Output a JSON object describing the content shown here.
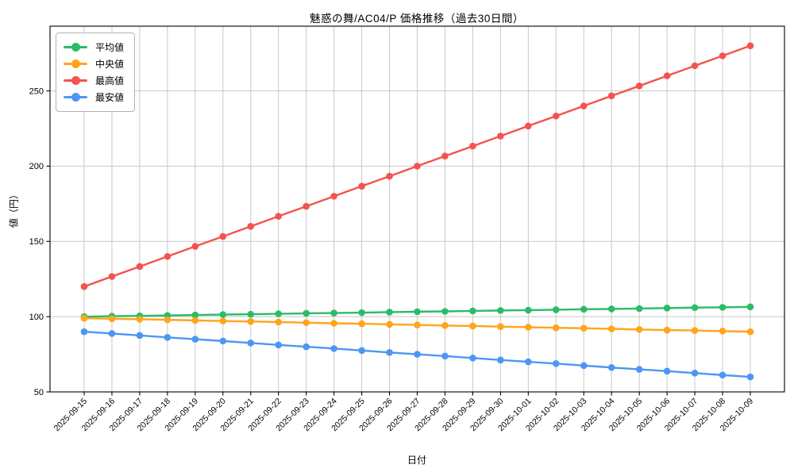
{
  "page": {
    "background": "#ffffff"
  },
  "chart_data": {
    "type": "line",
    "title": "魅惑の舞/AC04/P 価格推移（過去30日間）",
    "xlabel": "日付",
    "ylabel": "値（円）",
    "legend_position": "upper-left",
    "grid": true,
    "grid_color": "#c8c8c8",
    "axis_color": "#000000",
    "ylim": [
      50,
      293
    ],
    "yticks": [
      50,
      100,
      150,
      200,
      250
    ],
    "categories": [
      "2025-09-15",
      "2025-09-16",
      "2025-09-17",
      "2025-09-18",
      "2025-09-19",
      "2025-09-20",
      "2025-09-21",
      "2025-09-22",
      "2025-09-23",
      "2025-09-24",
      "2025-09-25",
      "2025-09-26",
      "2025-09-27",
      "2025-09-28",
      "2025-09-29",
      "2025-09-30",
      "2025-10-01",
      "2025-10-02",
      "2025-10-03",
      "2025-10-04",
      "2025-10-05",
      "2025-10-06",
      "2025-10-07",
      "2025-10-08",
      "2025-10-09"
    ],
    "series": [
      {
        "name": "平均値",
        "key": "average",
        "color": "#2cbb68",
        "values": [
          100.0,
          100.3,
          100.5,
          100.8,
          101.1,
          101.4,
          101.6,
          101.9,
          102.2,
          102.4,
          102.7,
          103.0,
          103.3,
          103.5,
          103.8,
          104.1,
          104.3,
          104.6,
          104.9,
          105.1,
          105.4,
          105.7,
          106.0,
          106.2,
          106.5
        ]
      },
      {
        "name": "中央値",
        "key": "median",
        "color": "#ffa41c",
        "values": [
          99.0,
          98.6,
          98.3,
          97.9,
          97.5,
          97.1,
          96.8,
          96.4,
          96.0,
          95.6,
          95.3,
          94.9,
          94.5,
          94.1,
          93.8,
          93.4,
          93.0,
          92.6,
          92.3,
          91.9,
          91.5,
          91.1,
          90.8,
          90.4,
          90.0
        ]
      },
      {
        "name": "最高値",
        "key": "max",
        "color": "#f4534e",
        "values": [
          120.0,
          126.7,
          133.3,
          140.0,
          146.7,
          153.3,
          160.0,
          166.7,
          173.3,
          180.0,
          186.7,
          193.3,
          200.0,
          206.7,
          213.3,
          220.0,
          226.7,
          233.3,
          240.0,
          246.7,
          253.3,
          260.0,
          266.7,
          273.3,
          280.0
        ]
      },
      {
        "name": "最安値",
        "key": "min",
        "color": "#4d96f2",
        "values": [
          90.0,
          88.8,
          87.5,
          86.2,
          85.0,
          83.8,
          82.5,
          81.2,
          80.0,
          78.8,
          77.5,
          76.2,
          75.0,
          73.8,
          72.5,
          71.2,
          70.0,
          68.8,
          67.5,
          66.2,
          65.0,
          63.8,
          62.5,
          61.2,
          60.0
        ]
      }
    ]
  }
}
